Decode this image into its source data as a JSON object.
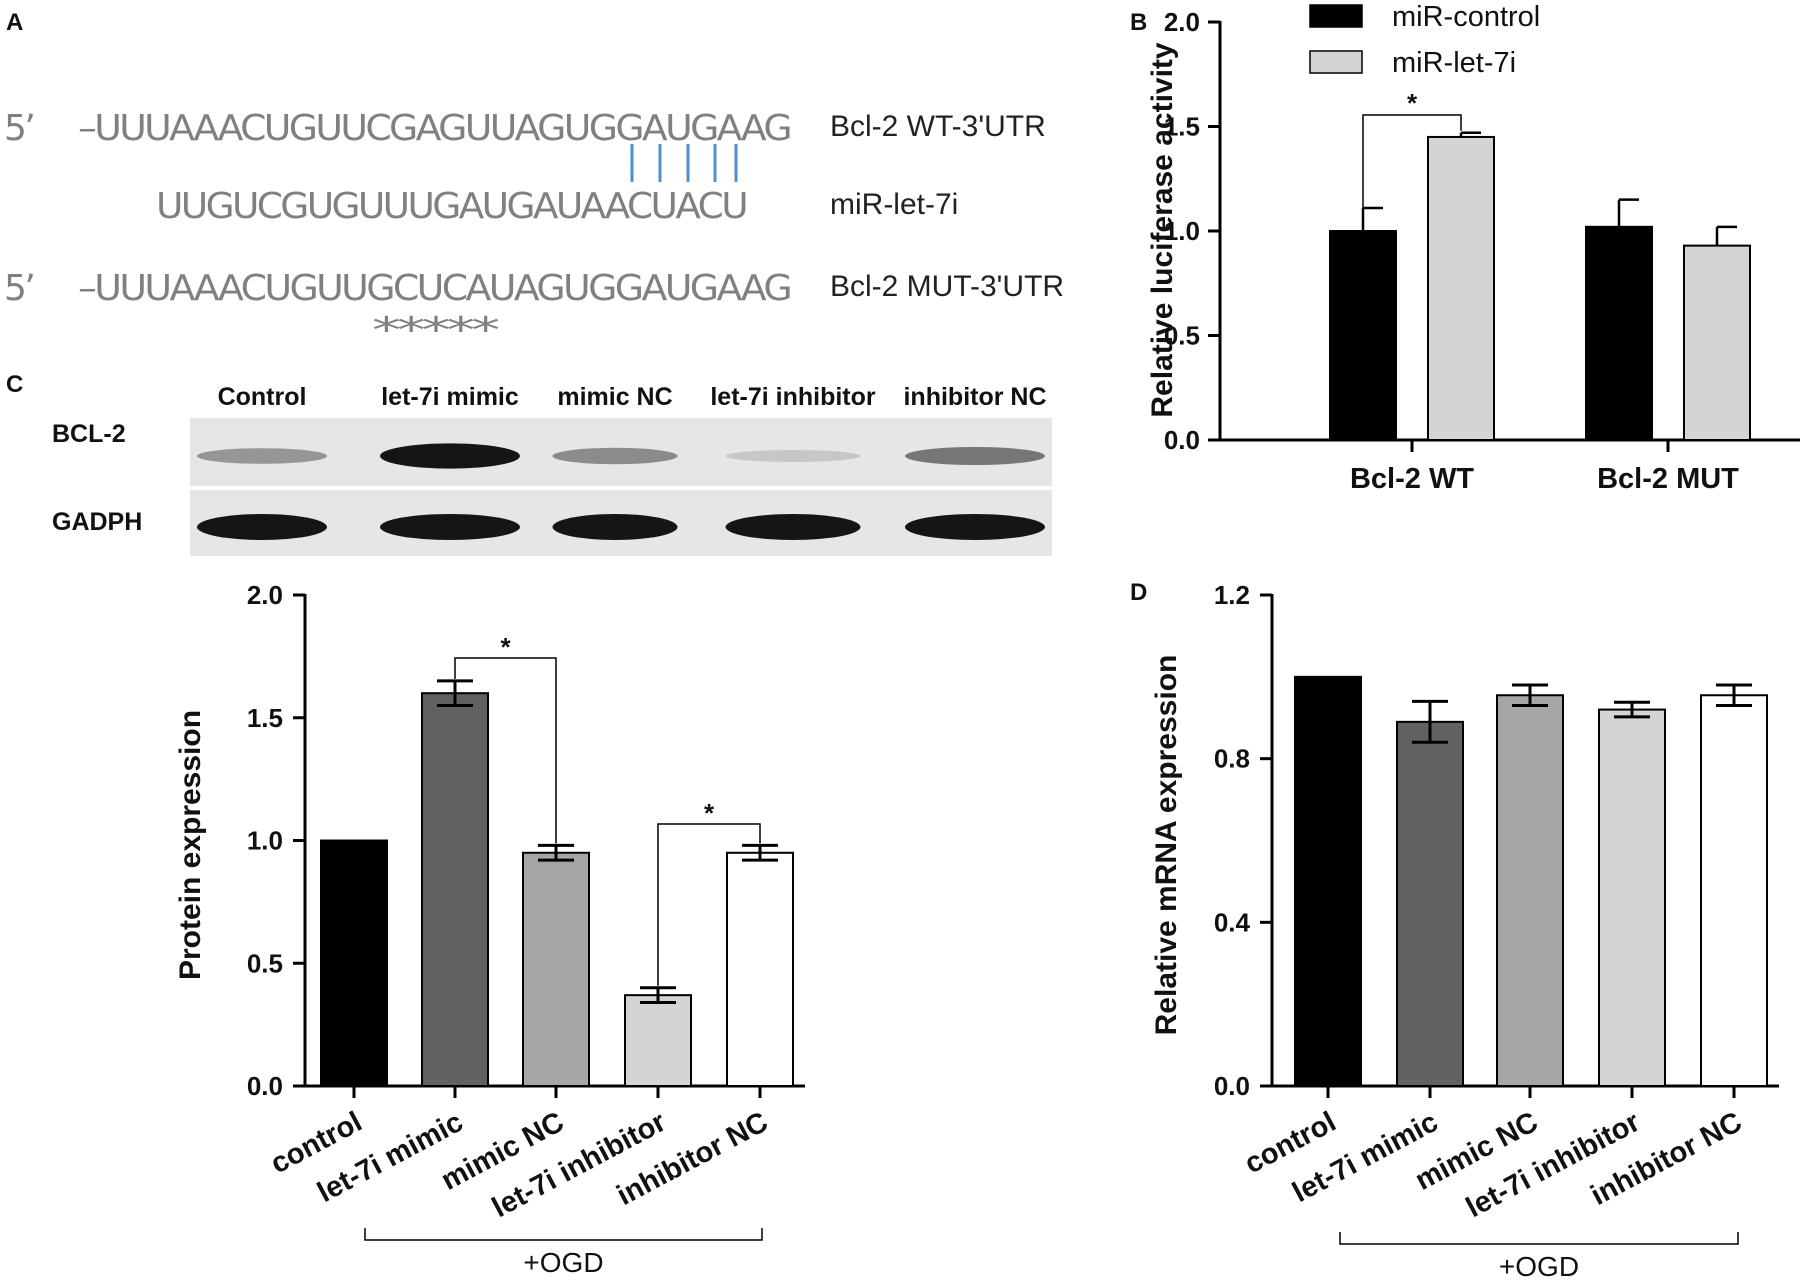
{
  "panel_labels": {
    "a": "A",
    "b": "B",
    "c": "C",
    "d": "D"
  },
  "panel_a": {
    "prime": "5’",
    "wt_sequence": "–UUUAAACUGUUCGAGUUAGUGGAUGAAG",
    "wt_label": "Bcl-2 WT-3'UTR",
    "mir_sequence": "UUGUCGUGUUUGAUGAUAACUACU",
    "mir_label": "miR-let-7i",
    "mut_sequence": "–UUUAAACUGUUGCUCAUAGUGGAUGAAG",
    "mut_label": "Bcl-2 MUT-3'UTR",
    "mutation_marks": "*****",
    "pairing_color": "#4a90d9"
  },
  "western_blot": {
    "lanes": [
      "Control",
      "let-7i mimic",
      "mimic NC",
      "let-7i inhibitor",
      "inhibitor NC"
    ],
    "rows": [
      {
        "label": "BCL-2",
        "intensity": [
          0.35,
          0.95,
          0.4,
          0.12,
          0.5
        ]
      },
      {
        "label": "GADPH",
        "intensity": [
          0.95,
          0.95,
          0.95,
          0.95,
          0.95
        ]
      }
    ]
  },
  "chart_data": [
    {
      "id": "B",
      "type": "bar",
      "categories": [
        "Bcl-2 WT",
        "Bcl-2 MUT"
      ],
      "series": [
        {
          "name": "miR-control",
          "values": [
            1.0,
            1.02
          ],
          "errors": [
            0.11,
            0.13
          ],
          "color": "#000000"
        },
        {
          "name": "miR-let-7i",
          "values": [
            1.45,
            0.93
          ],
          "errors": [
            0.02,
            0.09
          ],
          "color": "#d4d4d4"
        }
      ],
      "ylabel": "Relative luciferase activity",
      "ylim": [
        0,
        2.0
      ],
      "yticks": [
        "0.0",
        "0.5",
        "1.0",
        "1.5",
        "2.0"
      ],
      "legend_position": "top",
      "significance": [
        {
          "mark": "*",
          "between": "Bcl-2 WT bars"
        }
      ]
    },
    {
      "id": "C",
      "type": "bar",
      "categories": [
        "control",
        "let-7i mimic",
        "mimic NC",
        "let-7i inhibitor",
        "inhibitor NC"
      ],
      "values": [
        1.0,
        1.6,
        0.95,
        0.37,
        0.95
      ],
      "errors": [
        0,
        0.05,
        0.03,
        0.03,
        0.03
      ],
      "colors": [
        "#000000",
        "#616161",
        "#a6a6a6",
        "#d4d4d4",
        "#ffffff"
      ],
      "ylabel": "Protein expression",
      "ylim": [
        0,
        2.0
      ],
      "yticks": [
        "0.0",
        "0.5",
        "1.0",
        "1.5",
        "2.0"
      ],
      "group_label": "+OGD",
      "significance": [
        {
          "mark": "*",
          "from": "let-7i mimic",
          "to": "mimic NC"
        },
        {
          "mark": "*",
          "from": "let-7i inhibitor",
          "to": "inhibitor NC"
        }
      ]
    },
    {
      "id": "D",
      "type": "bar",
      "categories": [
        "control",
        "let-7i mimic",
        "mimic NC",
        "let-7i inhibitor",
        "inhibitor NC"
      ],
      "values": [
        1.0,
        0.89,
        0.955,
        0.92,
        0.955
      ],
      "errors": [
        0,
        0.05,
        0.025,
        0.018,
        0.025
      ],
      "colors": [
        "#000000",
        "#616161",
        "#a6a6a6",
        "#d4d4d4",
        "#ffffff"
      ],
      "ylabel": "Relative mRNA expression",
      "ylim": [
        0,
        1.2
      ],
      "yticks": [
        "0.0",
        "0.4",
        "0.8",
        "1.2"
      ],
      "group_label": "+OGD"
    }
  ]
}
